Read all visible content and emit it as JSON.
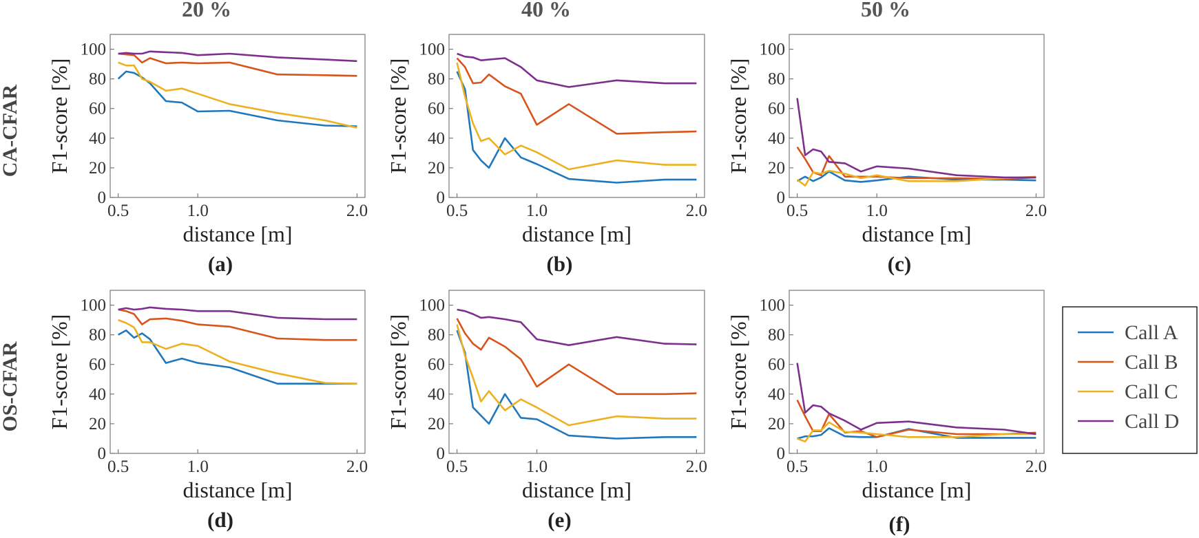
{
  "column_headers": [
    "20 %",
    "40 %",
    "50 %"
  ],
  "row_headers": [
    "CA-CFAR",
    "OS-CFAR"
  ],
  "colors": {
    "Call A": "#1f77bd",
    "Call B": "#d9541a",
    "Call C": "#edb120",
    "Call D": "#7e2f8e"
  },
  "legend": [
    "Call A",
    "Call B",
    "Call C",
    "Call D"
  ],
  "chart_data": [
    {
      "type": "line",
      "panel_label": "(a)",
      "xlabel": "distance [m]",
      "ylabel": "F1-score [%]",
      "ylim": [
        0,
        110
      ],
      "xlim": [
        0.45,
        2.05
      ],
      "xticks": [
        0.5,
        1.0,
        2.0
      ],
      "xtick_labels": [
        "0.5",
        "1.0",
        "2.0"
      ],
      "yticks": [
        0,
        20,
        40,
        60,
        80,
        100
      ],
      "x": [
        0.5,
        0.55,
        0.6,
        0.65,
        0.7,
        0.8,
        0.9,
        1.0,
        1.2,
        1.5,
        1.8,
        2.0
      ],
      "series": [
        {
          "name": "Call A",
          "values": [
            80,
            85,
            84,
            81,
            77,
            65,
            64,
            58,
            58.5,
            52,
            48.5,
            48
          ]
        },
        {
          "name": "Call B",
          "values": [
            97,
            96.5,
            96,
            91,
            94,
            90.5,
            91,
            90.5,
            91,
            83,
            82.5,
            82
          ]
        },
        {
          "name": "Call C",
          "values": [
            91,
            89,
            89,
            80,
            78,
            72,
            73.5,
            70,
            63,
            57,
            52,
            47
          ]
        },
        {
          "name": "Call D",
          "values": [
            97,
            97.5,
            97,
            97,
            98.5,
            98,
            97.5,
            96,
            97,
            94.5,
            93,
            92
          ]
        }
      ]
    },
    {
      "type": "line",
      "panel_label": "(b)",
      "xlabel": "distance [m]",
      "ylabel": "F1-score [%]",
      "ylim": [
        0,
        110
      ],
      "xlim": [
        0.45,
        2.05
      ],
      "xticks": [
        0.5,
        1.0,
        2.0
      ],
      "xtick_labels": [
        "0.5",
        "1.0",
        "2.0"
      ],
      "yticks": [
        0,
        20,
        40,
        60,
        80,
        100
      ],
      "x": [
        0.5,
        0.55,
        0.6,
        0.65,
        0.7,
        0.8,
        0.9,
        1.0,
        1.2,
        1.5,
        1.8,
        2.0
      ],
      "series": [
        {
          "name": "Call A",
          "values": [
            85,
            73,
            32,
            25,
            20,
            40,
            27,
            22.5,
            12.5,
            10,
            12,
            12
          ]
        },
        {
          "name": "Call B",
          "values": [
            94,
            88,
            77,
            77.5,
            83,
            75,
            70,
            49,
            63,
            43,
            44,
            44.5
          ]
        },
        {
          "name": "Call C",
          "values": [
            91,
            68,
            50,
            38,
            40,
            29,
            35,
            30.5,
            19,
            25,
            22,
            22
          ]
        },
        {
          "name": "Call D",
          "values": [
            97,
            95,
            94.5,
            92.5,
            93,
            94,
            88,
            79,
            74.5,
            79,
            77,
            77
          ]
        }
      ]
    },
    {
      "type": "line",
      "panel_label": "(c)",
      "xlabel": "distance [m]",
      "ylabel": "F1-score [%]",
      "ylim": [
        0,
        110
      ],
      "xlim": [
        0.45,
        2.05
      ],
      "xticks": [
        0.5,
        1.0,
        2.0
      ],
      "xtick_labels": [
        "0.5",
        "1.0",
        "2.0"
      ],
      "yticks": [
        0,
        20,
        40,
        60,
        80,
        100
      ],
      "x": [
        0.5,
        0.55,
        0.6,
        0.65,
        0.7,
        0.8,
        0.9,
        1.0,
        1.2,
        1.5,
        1.8,
        2.0
      ],
      "series": [
        {
          "name": "Call A",
          "values": [
            11,
            14,
            11,
            13.5,
            17.5,
            11.5,
            10.5,
            11.5,
            14,
            12,
            12,
            11.5
          ]
        },
        {
          "name": "Call B",
          "values": [
            34,
            26,
            17,
            15,
            28,
            14,
            14,
            14,
            13,
            13,
            12.5,
            13.5
          ]
        },
        {
          "name": "Call C",
          "values": [
            12,
            8,
            17,
            16,
            18,
            16,
            13,
            15,
            11,
            11,
            13,
            14
          ]
        },
        {
          "name": "Call D",
          "values": [
            67,
            28.5,
            32.5,
            31,
            24,
            23,
            17.5,
            21,
            19.5,
            15,
            13.5,
            13.5
          ]
        }
      ]
    },
    {
      "type": "line",
      "panel_label": "(d)",
      "xlabel": "distance [m]",
      "ylabel": "F1-score [%]",
      "ylim": [
        0,
        110
      ],
      "xlim": [
        0.45,
        2.05
      ],
      "xticks": [
        0.5,
        1.0,
        2.0
      ],
      "xtick_labels": [
        "0.5",
        "1.0",
        "2.0"
      ],
      "yticks": [
        0,
        20,
        40,
        60,
        80,
        100
      ],
      "x": [
        0.5,
        0.55,
        0.6,
        0.65,
        0.7,
        0.8,
        0.9,
        1.0,
        1.2,
        1.5,
        1.8,
        2.0
      ],
      "series": [
        {
          "name": "Call A",
          "values": [
            80,
            83,
            78,
            81,
            77,
            61,
            64,
            61,
            58,
            47,
            47,
            47
          ]
        },
        {
          "name": "Call B",
          "values": [
            97,
            96,
            94,
            87,
            90.5,
            91,
            89.5,
            87,
            85.5,
            77.5,
            76.5,
            76.5
          ]
        },
        {
          "name": "Call C",
          "values": [
            90,
            88,
            85,
            75,
            75,
            70.5,
            74,
            72.5,
            62,
            54,
            47.5,
            47
          ]
        },
        {
          "name": "Call D",
          "values": [
            97,
            98,
            97,
            97.5,
            98.5,
            97.5,
            97,
            96,
            96,
            91.5,
            90.5,
            90.5
          ]
        }
      ]
    },
    {
      "type": "line",
      "panel_label": "(e)",
      "xlabel": "distance [m]",
      "ylabel": "F1-score [%]",
      "ylim": [
        0,
        110
      ],
      "xlim": [
        0.45,
        2.05
      ],
      "xticks": [
        0.5,
        1.0,
        2.0
      ],
      "xtick_labels": [
        "0.5",
        "1.0",
        "2.0"
      ],
      "yticks": [
        0,
        20,
        40,
        60,
        80,
        100
      ],
      "x": [
        0.5,
        0.55,
        0.6,
        0.65,
        0.7,
        0.8,
        0.9,
        1.0,
        1.2,
        1.5,
        1.8,
        2.0
      ],
      "series": [
        {
          "name": "Call A",
          "values": [
            83,
            68,
            31,
            25.5,
            20,
            40,
            24,
            23,
            12,
            10,
            11,
            11
          ]
        },
        {
          "name": "Call B",
          "values": [
            91,
            81,
            74,
            70,
            78,
            72,
            63.5,
            45,
            60,
            40,
            40,
            40.5
          ]
        },
        {
          "name": "Call C",
          "values": [
            87,
            66,
            51,
            35,
            42,
            29,
            36.5,
            31,
            19,
            25,
            23.5,
            23.5
          ]
        },
        {
          "name": "Call D",
          "values": [
            97,
            96,
            94,
            91.5,
            92,
            90.5,
            88.5,
            77,
            73,
            78.5,
            74,
            73.5
          ]
        }
      ]
    },
    {
      "type": "line",
      "panel_label": "(f)",
      "xlabel": "distance [m]",
      "ylabel": "F1-score [%]",
      "ylim": [
        0,
        110
      ],
      "xlim": [
        0.45,
        2.05
      ],
      "xticks": [
        0.5,
        1.0,
        2.0
      ],
      "xtick_labels": [
        "0.5",
        "1.0",
        "2.0"
      ],
      "yticks": [
        0,
        20,
        40,
        60,
        80,
        100
      ],
      "x": [
        0.5,
        0.55,
        0.6,
        0.65,
        0.7,
        0.8,
        0.9,
        1.0,
        1.2,
        1.5,
        1.8,
        2.0
      ],
      "series": [
        {
          "name": "Call A",
          "values": [
            10,
            11.5,
            11.5,
            12.5,
            17,
            11.5,
            11,
            11,
            16.5,
            10.5,
            10.5,
            10.5
          ]
        },
        {
          "name": "Call B",
          "values": [
            36,
            25,
            15,
            15,
            26.5,
            14,
            15,
            11,
            16,
            13,
            13,
            14
          ]
        },
        {
          "name": "Call C",
          "values": [
            10,
            8,
            15.5,
            15.5,
            21,
            14.5,
            14,
            13,
            11,
            11,
            13,
            13
          ]
        },
        {
          "name": "Call D",
          "values": [
            61,
            27.5,
            32.5,
            31.5,
            27,
            22,
            16,
            20.5,
            21.5,
            17.5,
            16,
            13
          ]
        }
      ]
    }
  ]
}
